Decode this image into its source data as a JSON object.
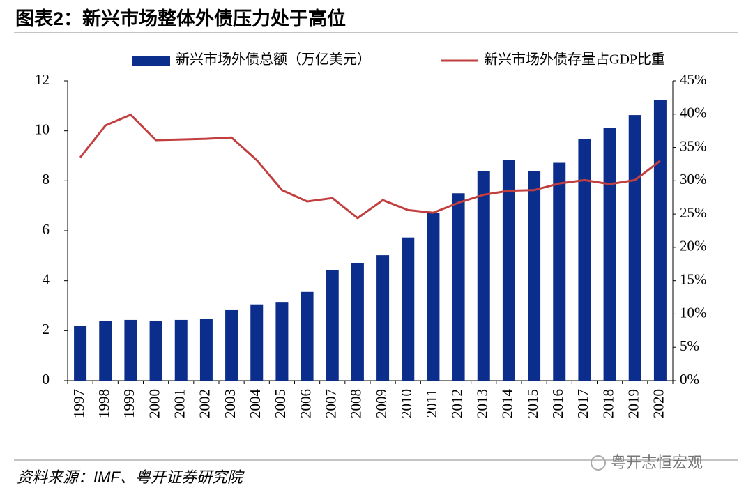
{
  "chart_data": {
    "type": "bar_line",
    "title": "图表2：新兴市场整体外债压力处于高位",
    "source": "资料来源：IMF、粤开证券研究院",
    "watermark": "粤开志恒宏观",
    "categories": [
      "1997",
      "1998",
      "1999",
      "2000",
      "2001",
      "2002",
      "2003",
      "2004",
      "2005",
      "2006",
      "2007",
      "2008",
      "2009",
      "2010",
      "2011",
      "2012",
      "2013",
      "2014",
      "2015",
      "2016",
      "2017",
      "2018",
      "2019",
      "2020"
    ],
    "series": [
      {
        "name": "新兴市场外债总额（万亿美元）",
        "type": "bar",
        "color": "#0b2d8c",
        "values": [
          2.18,
          2.38,
          2.43,
          2.4,
          2.43,
          2.48,
          2.82,
          3.05,
          3.15,
          3.55,
          4.42,
          4.7,
          5.02,
          5.73,
          6.72,
          7.5,
          8.38,
          8.83,
          8.38,
          8.72,
          9.67,
          10.12,
          10.63,
          11.22
        ]
      },
      {
        "name": "新兴市场外债存量占GDP比重",
        "type": "line",
        "axis": "y2",
        "color": "#c23f3f",
        "values": [
          33.5,
          38.3,
          39.9,
          36.1,
          36.2,
          36.3,
          36.5,
          33.1,
          28.6,
          26.9,
          27.4,
          24.4,
          27.1,
          25.6,
          25.2,
          26.7,
          27.9,
          28.5,
          28.6,
          29.6,
          30.1,
          29.5,
          30.1,
          33.0
        ]
      }
    ],
    "ylim": [
      0,
      12
    ],
    "yticks": [
      0,
      2,
      4,
      6,
      8,
      10,
      12
    ],
    "y2lim": [
      0,
      45
    ],
    "y2ticks": [
      {
        "value": 0,
        "label": "0%"
      },
      {
        "value": 5,
        "label": "5%"
      },
      {
        "value": 10,
        "label": "10%"
      },
      {
        "value": 15,
        "label": "15%"
      },
      {
        "value": 20,
        "label": "20%"
      },
      {
        "value": 25,
        "label": "25%"
      },
      {
        "value": 30,
        "label": "30%"
      },
      {
        "value": 35,
        "label": "35%"
      },
      {
        "value": 40,
        "label": "40%"
      },
      {
        "value": 45,
        "label": "45%"
      }
    ],
    "grid": false
  }
}
